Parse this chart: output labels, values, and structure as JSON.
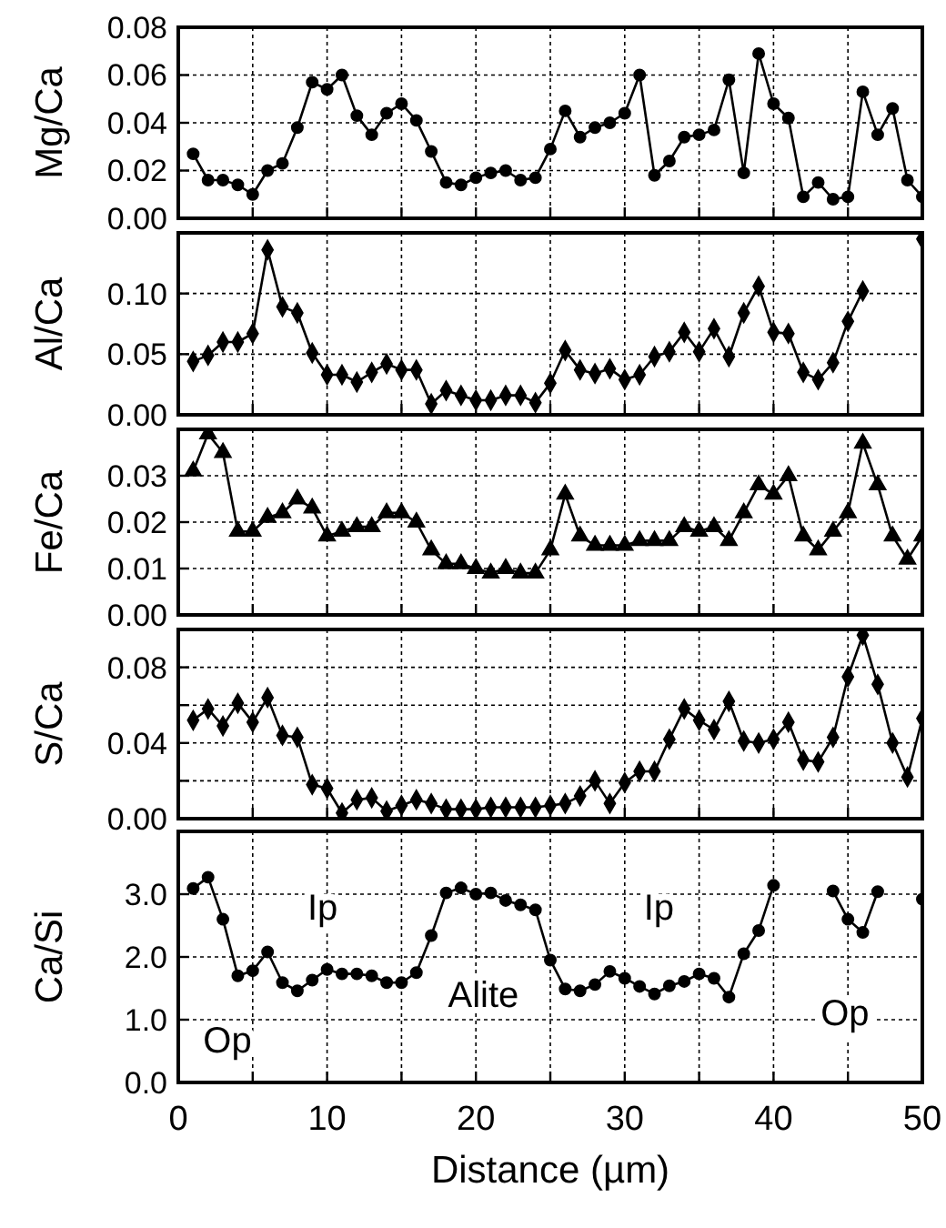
{
  "chart_data": [
    {
      "type": "line",
      "ylabel": "Mg/Ca",
      "x": [
        1,
        2,
        3,
        4,
        5,
        6,
        7,
        8,
        9,
        10,
        11,
        12,
        13,
        14,
        15,
        16,
        17,
        18,
        19,
        20,
        21,
        22,
        23,
        24,
        25,
        26,
        27,
        28,
        29,
        30,
        31,
        32,
        33,
        34,
        35,
        36,
        37,
        38,
        39,
        40,
        41,
        42,
        43,
        44,
        45,
        46,
        47,
        48,
        49,
        50
      ],
      "series": [
        {
          "color": "#000000",
          "values": [
            0.027,
            0.016,
            0.016,
            0.014,
            0.01,
            0.02,
            0.023,
            0.038,
            0.057,
            0.054,
            0.06,
            0.043,
            0.035,
            0.044,
            0.048,
            0.041,
            0.028,
            0.015,
            0.014,
            0.017,
            0.019,
            0.02,
            0.016,
            0.017,
            0.029,
            0.045,
            0.034,
            0.038,
            0.04,
            0.044,
            0.06,
            0.018,
            0.024,
            0.034,
            0.035,
            0.037,
            0.058,
            0.019,
            0.069,
            0.048,
            0.042,
            0.009,
            0.015,
            0.008,
            0.009,
            0.053,
            0.035,
            0.046,
            0.016,
            0.009
          ]
        }
      ],
      "xlim": [
        0,
        50
      ],
      "xticks": [
        0,
        5,
        10,
        15,
        20,
        25,
        30,
        35,
        40,
        45,
        50
      ],
      "ylim": [
        0,
        0.08
      ],
      "yticks": [
        {
          "value": 0,
          "label": "0.00"
        },
        {
          "value": 0.02,
          "label": "0.02"
        },
        {
          "value": 0.04,
          "label": "0.04"
        },
        {
          "value": 0.06,
          "label": "0.06"
        },
        {
          "value": 0.08,
          "label": "0.08"
        }
      ],
      "grid": true,
      "marker": "circle",
      "tick_labels": "y"
    },
    {
      "type": "line",
      "ylabel": "Al/Ca",
      "x": [
        1,
        2,
        3,
        4,
        5,
        6,
        7,
        8,
        9,
        10,
        11,
        12,
        13,
        14,
        15,
        16,
        17,
        18,
        19,
        20,
        21,
        22,
        23,
        24,
        25,
        26,
        27,
        28,
        29,
        30,
        31,
        32,
        33,
        34,
        35,
        36,
        37,
        38,
        39,
        40,
        41,
        42,
        43,
        44,
        45,
        46,
        47,
        48,
        49,
        50
      ],
      "series": [
        {
          "color": "#000000",
          "values": [
            0.044,
            0.049,
            0.06,
            0.06,
            0.067,
            0.136,
            0.089,
            0.084,
            0.051,
            0.033,
            0.033,
            0.027,
            0.035,
            0.042,
            0.037,
            0.037,
            0.009,
            0.02,
            0.016,
            0.012,
            0.012,
            0.016,
            0.016,
            0.01,
            0.026,
            0.053,
            0.037,
            0.034,
            0.038,
            0.029,
            0.033,
            0.048,
            0.052,
            0.068,
            0.052,
            0.071,
            0.048,
            0.084,
            0.106,
            0.068,
            0.067,
            0.035,
            0.029,
            0.043,
            0.077,
            0.102,
            null,
            null,
            null,
            0.145
          ]
        }
      ],
      "xlim": [
        0,
        50
      ],
      "xticks": [
        0,
        5,
        10,
        15,
        20,
        25,
        30,
        35,
        40,
        45,
        50
      ],
      "ylim": [
        0,
        0.15
      ],
      "yticks": [
        {
          "value": 0,
          "label": "0.00"
        },
        {
          "value": 0.05,
          "label": "0.05"
        },
        {
          "value": 0.1,
          "label": "0.10"
        }
      ],
      "grid": true,
      "marker": "diamond",
      "tick_labels": "y"
    },
    {
      "type": "line",
      "ylabel": "Fe/Ca",
      "x": [
        1,
        2,
        3,
        4,
        5,
        6,
        7,
        8,
        9,
        10,
        11,
        12,
        13,
        14,
        15,
        16,
        17,
        18,
        19,
        20,
        21,
        22,
        23,
        24,
        25,
        26,
        27,
        28,
        29,
        30,
        31,
        32,
        33,
        34,
        35,
        36,
        37,
        38,
        39,
        40,
        41,
        42,
        43,
        44,
        45,
        46,
        47,
        48,
        49,
        50
      ],
      "series": [
        {
          "color": "#000000",
          "values": [
            0.031,
            0.039,
            0.035,
            0.018,
            0.018,
            0.021,
            0.022,
            0.025,
            0.023,
            0.017,
            0.018,
            0.019,
            0.019,
            0.022,
            0.022,
            0.02,
            0.014,
            0.011,
            0.011,
            0.01,
            0.009,
            0.01,
            0.009,
            0.009,
            0.014,
            0.026,
            0.017,
            0.015,
            0.015,
            0.015,
            0.016,
            0.016,
            0.016,
            0.019,
            0.018,
            0.019,
            0.016,
            0.022,
            0.028,
            0.026,
            0.03,
            0.017,
            0.014,
            0.018,
            0.022,
            0.037,
            0.028,
            0.017,
            0.012,
            0.017
          ]
        }
      ],
      "xlim": [
        0,
        50
      ],
      "xticks": [
        0,
        5,
        10,
        15,
        20,
        25,
        30,
        35,
        40,
        45,
        50
      ],
      "ylim": [
        0,
        0.04
      ],
      "yticks": [
        {
          "value": 0,
          "label": "0.00"
        },
        {
          "value": 0.01,
          "label": "0.01"
        },
        {
          "value": 0.02,
          "label": "0.02"
        },
        {
          "value": 0.03,
          "label": "0.03"
        }
      ],
      "grid": true,
      "marker": "triangle",
      "tick_labels": "y"
    },
    {
      "type": "line",
      "ylabel": "S/Ca",
      "x": [
        1,
        2,
        3,
        4,
        5,
        6,
        7,
        8,
        9,
        10,
        11,
        12,
        13,
        14,
        15,
        16,
        17,
        18,
        19,
        20,
        21,
        22,
        23,
        24,
        25,
        26,
        27,
        28,
        29,
        30,
        31,
        32,
        33,
        34,
        35,
        36,
        37,
        38,
        39,
        40,
        41,
        42,
        43,
        44,
        45,
        46,
        47,
        48,
        49,
        50
      ],
      "series": [
        {
          "color": "#000000",
          "values": [
            0.052,
            0.058,
            0.049,
            0.061,
            0.051,
            0.064,
            0.044,
            0.043,
            0.018,
            0.016,
            0.003,
            0.01,
            0.011,
            0.004,
            0.007,
            0.01,
            0.008,
            0.005,
            0.005,
            0.005,
            0.006,
            0.006,
            0.006,
            0.006,
            0.007,
            0.008,
            0.012,
            0.02,
            0.008,
            0.019,
            0.025,
            0.025,
            0.042,
            0.058,
            0.052,
            0.047,
            0.062,
            0.041,
            0.04,
            0.042,
            0.051,
            0.031,
            0.03,
            0.043,
            0.075,
            0.097,
            0.071,
            0.04,
            0.022,
            0.053
          ]
        }
      ],
      "xlim": [
        0,
        50
      ],
      "xticks": [
        0,
        5,
        10,
        15,
        20,
        25,
        30,
        35,
        40,
        45,
        50
      ],
      "ylim": [
        0,
        0.1
      ],
      "yticks": [
        {
          "value": 0,
          "label": "0.00"
        },
        {
          "value": 0.02,
          "label": null
        },
        {
          "value": 0.04,
          "label": "0.04"
        },
        {
          "value": 0.06,
          "label": null
        },
        {
          "value": 0.08,
          "label": "0.08"
        }
      ],
      "grid": true,
      "marker": "diamond",
      "tick_labels": "y"
    },
    {
      "type": "line",
      "ylabel": "Ca/Si",
      "xlabel": "Distance (µm)",
      "x": [
        1,
        2,
        3,
        4,
        5,
        6,
        7,
        8,
        9,
        10,
        11,
        12,
        13,
        14,
        15,
        16,
        17,
        18,
        19,
        20,
        21,
        22,
        23,
        24,
        25,
        26,
        27,
        28,
        29,
        30,
        31,
        32,
        33,
        34,
        35,
        36,
        37,
        38,
        39,
        40,
        41,
        42,
        43,
        44,
        45,
        46,
        47,
        48,
        49,
        50
      ],
      "series": [
        {
          "color": "#000000",
          "values": [
            3.09,
            3.27,
            2.6,
            1.7,
            1.78,
            2.08,
            1.59,
            1.46,
            1.63,
            1.8,
            1.73,
            1.73,
            1.7,
            1.59,
            1.59,
            1.75,
            2.34,
            3.02,
            3.1,
            3.0,
            3.02,
            2.9,
            2.83,
            2.75,
            1.95,
            1.49,
            1.46,
            1.56,
            1.77,
            1.66,
            1.53,
            1.41,
            1.54,
            1.61,
            1.73,
            1.66,
            1.36,
            2.05,
            2.42,
            3.14,
            null,
            null,
            null,
            3.05,
            2.6,
            2.39,
            3.04,
            null,
            null,
            2.92
          ]
        }
      ],
      "xlim": [
        0,
        50
      ],
      "xticks": [
        0,
        {
          "value": 5,
          "label": null
        },
        10,
        {
          "value": 15,
          "label": null
        },
        20,
        {
          "value": 25,
          "label": null
        },
        30,
        {
          "value": 35,
          "label": null
        },
        40,
        {
          "value": 45,
          "label": null
        },
        50
      ],
      "ylim": [
        0,
        4
      ],
      "yticks": [
        {
          "value": 0,
          "label": "0.0"
        },
        {
          "value": 1,
          "label": "1.0"
        },
        {
          "value": 2,
          "label": "2.0"
        },
        {
          "value": 3,
          "label": "3.0"
        }
      ],
      "grid": true,
      "marker": "circle",
      "annotations": [
        "Op",
        "Ip",
        "Alite",
        "Ip",
        "Op"
      ]
    }
  ]
}
